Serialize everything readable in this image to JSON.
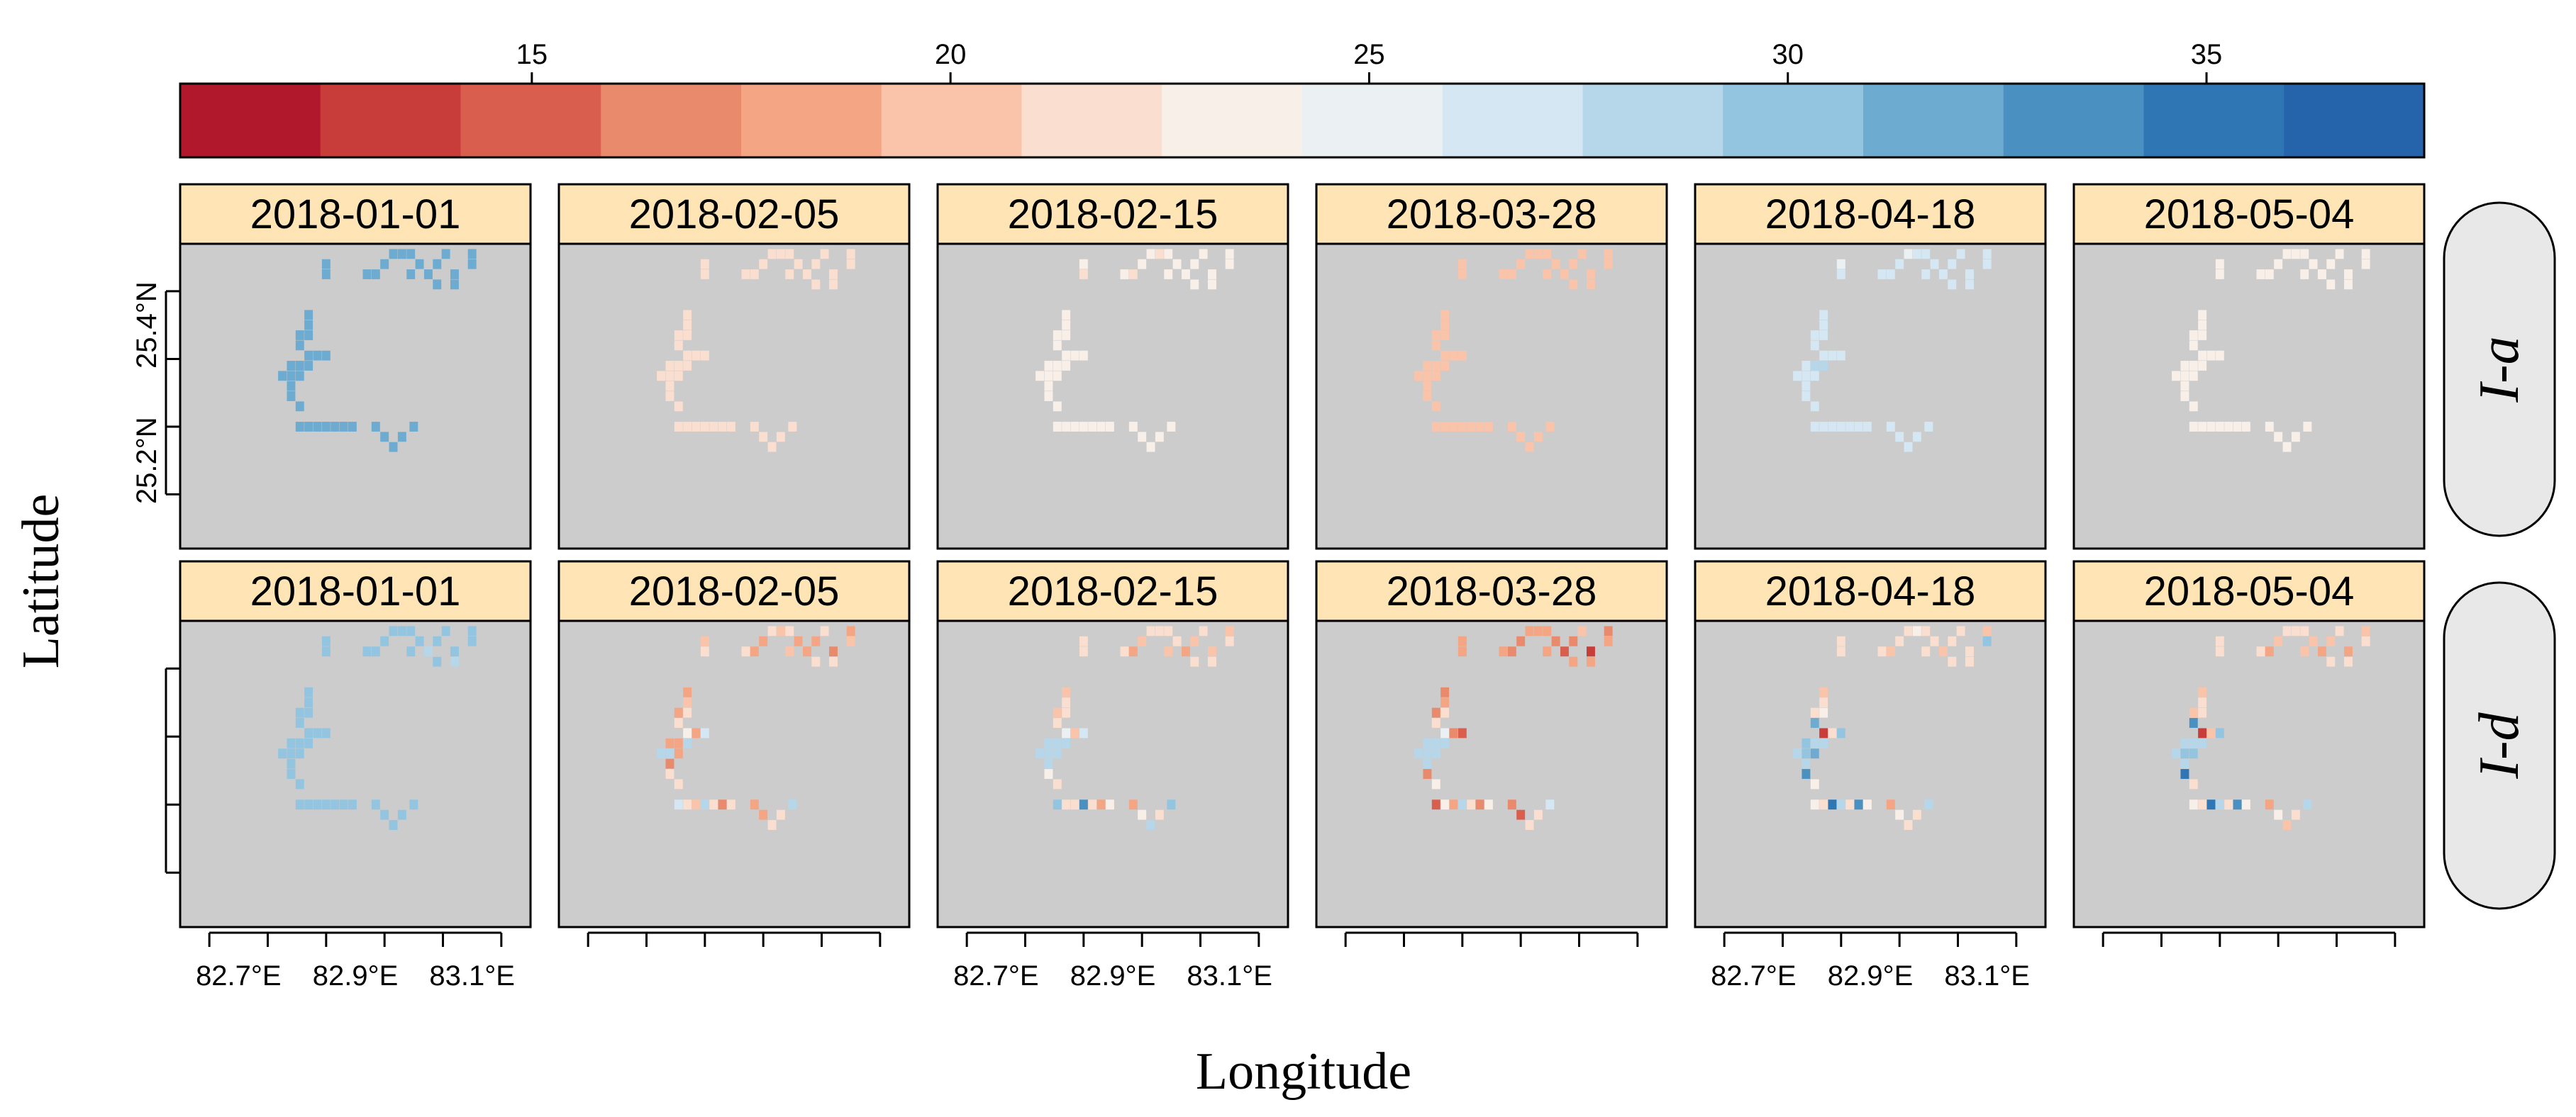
{
  "chart_data": {
    "type": "heatmap",
    "xlabel": "Longitude",
    "ylabel": "Latitude",
    "colorbar": {
      "range": [
        10.8,
        37.6
      ],
      "ticks": [
        15,
        20,
        25,
        30,
        35
      ],
      "bins": 16,
      "palette": [
        "#b2182b",
        "#c83d3a",
        "#da5e4d",
        "#e98a6c",
        "#f4a584",
        "#f9c4aa",
        "#fadecf",
        "#f8efe8",
        "#ebf0f3",
        "#d4e7f2",
        "#b6d7ea",
        "#93c5e0",
        "#6eabd1",
        "#4a91c2",
        "#2f76b5",
        "#2563ab"
      ]
    },
    "x_ticks": [
      82.65,
      82.75,
      82.85,
      82.95,
      83.05,
      83.15
    ],
    "x_tick_labels": [
      "82.7°E",
      "82.9°E",
      "83.1°E"
    ],
    "x_tick_label_values": [
      82.7,
      82.9,
      83.1
    ],
    "y_ticks": [
      25.15,
      25.25,
      25.35,
      25.45
    ],
    "y_tick_labels": [
      "25.2°N",
      "25.4°N"
    ],
    "y_tick_label_values": [
      25.2,
      25.4
    ],
    "xlim": [
      82.6,
      83.2
    ],
    "ylim": [
      25.07,
      25.52
    ],
    "dates": [
      "2018-01-01",
      "2018-02-05",
      "2018-02-15",
      "2018-03-28",
      "2018-04-18",
      "2018-05-04"
    ],
    "rows": [
      {
        "label": "I-a",
        "values": [
          [
            32,
            32,
            32,
            32,
            32,
            32,
            32,
            32,
            32,
            32,
            32,
            32,
            32,
            32,
            32,
            32,
            32,
            32,
            32,
            32,
            32,
            32,
            32,
            32,
            32,
            32,
            32,
            32,
            32,
            32,
            32,
            32,
            32,
            32,
            32,
            32,
            32,
            32,
            32,
            32,
            32,
            32,
            32,
            32,
            32,
            32,
            32
          ],
          [
            21,
            22,
            21,
            22,
            22,
            21,
            22,
            22,
            22,
            22,
            21,
            21,
            22,
            21,
            22,
            21,
            22,
            21,
            21,
            21,
            22,
            21,
            21,
            22,
            22,
            22,
            22,
            22,
            22,
            21,
            22,
            22,
            22,
            22,
            22,
            21,
            22,
            22,
            22,
            22,
            21,
            22,
            22,
            22,
            22,
            22,
            21
          ],
          [
            22.5,
            23,
            23,
            22.5,
            23,
            23,
            22.5,
            23,
            23,
            23,
            23,
            23,
            23,
            23,
            23,
            23,
            23,
            23,
            23,
            23,
            23,
            23,
            23,
            23,
            23,
            23,
            23,
            23,
            23,
            23,
            23,
            23,
            23,
            23,
            23,
            23,
            23,
            23,
            23,
            23,
            23,
            23,
            23,
            23,
            23,
            23,
            23
          ],
          [
            20,
            20.5,
            20,
            20,
            20,
            20.5,
            20,
            20,
            20,
            20,
            20.5,
            20,
            20,
            20,
            20.5,
            20,
            20.5,
            20,
            20,
            20,
            20,
            20,
            20,
            20,
            20,
            20,
            20,
            20,
            20,
            20,
            20,
            20,
            20,
            20,
            20,
            20,
            20,
            20,
            20,
            20,
            20,
            20,
            20,
            20,
            20,
            20,
            20
          ],
          [
            26,
            25.5,
            26,
            26,
            26,
            25.5,
            26,
            26,
            26,
            26,
            26,
            26,
            26,
            26,
            26,
            26,
            26,
            26,
            26,
            26,
            26,
            26,
            26,
            26,
            26,
            26,
            26,
            28,
            28,
            26,
            26,
            26,
            26,
            26,
            26,
            26,
            26,
            26,
            26,
            26,
            26,
            26,
            26,
            26,
            26,
            26,
            26
          ],
          [
            23.5,
            23.5,
            23.5,
            23.5,
            23.5,
            23.5,
            23.5,
            23.5,
            23.5,
            23.5,
            23.5,
            23.5,
            23.5,
            23.5,
            23.5,
            23.5,
            23.5,
            23.5,
            23.5,
            23.5,
            23.5,
            23.5,
            23.5,
            23.5,
            23.5,
            23.5,
            23.5,
            23.5,
            23.5,
            23.5,
            23.5,
            23.5,
            23.5,
            23.5,
            23.5,
            23.5,
            23.5,
            23.5,
            23.5,
            23.5,
            23.5,
            23.5,
            23.5,
            23.5,
            23.5,
            23.5,
            23.5
          ]
        ]
      },
      {
        "label": "I-d",
        "values": [
          [
            30,
            30,
            30,
            30,
            30,
            30,
            30,
            30,
            30,
            30,
            29,
            30,
            30,
            30,
            30,
            29,
            30,
            30,
            30,
            30,
            30,
            30,
            30,
            30,
            30,
            30,
            30,
            30,
            30,
            30,
            30,
            30,
            30,
            30,
            30,
            30,
            30,
            30,
            30,
            30,
            30,
            30,
            30,
            30,
            30,
            30,
            30
          ],
          [
            21,
            20,
            21,
            18,
            19,
            21,
            20,
            21,
            19,
            20,
            18,
            21,
            19,
            22,
            17,
            21,
            20,
            19,
            19,
            20,
            19,
            21,
            22,
            24,
            19,
            26,
            18,
            19,
            29,
            29,
            29,
            18,
            17,
            22,
            21,
            26,
            22,
            20,
            29,
            21,
            17,
            22,
            19,
            18,
            21,
            22,
            29
          ],
          [
            21,
            22,
            21,
            19,
            20,
            21,
            22,
            21,
            21,
            20,
            19,
            21,
            20,
            22,
            20,
            22,
            21,
            20,
            20,
            21,
            20,
            22,
            22,
            25,
            20,
            27,
            29,
            29,
            29,
            29,
            29,
            29,
            29,
            23,
            22,
            30,
            22,
            21,
            34,
            22,
            19,
            24,
            19,
            23,
            29,
            22,
            30
          ],
          [
            19,
            18,
            19,
            16,
            17,
            19,
            18,
            19,
            16,
            18,
            15,
            19,
            17,
            20,
            14,
            19,
            18,
            17,
            17,
            18,
            17,
            22,
            22,
            25,
            17,
            15,
            29,
            28,
            28,
            28,
            28,
            29,
            28,
            17,
            24,
            15,
            23,
            19,
            28,
            22,
            16,
            24,
            17,
            15,
            21,
            22,
            27
          ],
          [
            21,
            22,
            21,
            20,
            21,
            21,
            23,
            21,
            21,
            21,
            20,
            21,
            21,
            22,
            21,
            22,
            30,
            20,
            20,
            21,
            21,
            24,
            31,
            14,
            22,
            30,
            30,
            29,
            28,
            29,
            30,
            31,
            29,
            33,
            24,
            24,
            22,
            35,
            28,
            22,
            34,
            24,
            19,
            24,
            21,
            22,
            29
          ],
          [
            21,
            22,
            21,
            19,
            20,
            21,
            22,
            21,
            20,
            20,
            19,
            21,
            20,
            22,
            18,
            22,
            21,
            20,
            20,
            21,
            20,
            21,
            33,
            13,
            20,
            30,
            29,
            29,
            29,
            29,
            30,
            30,
            29,
            35,
            22,
            24,
            22,
            35,
            28,
            22,
            33,
            23,
            19,
            23,
            20,
            22,
            29
          ]
        ]
      }
    ],
    "cells": [
      [
        82.85,
        25.475
      ],
      [
        82.85,
        25.49
      ],
      [
        82.92,
        25.475
      ],
      [
        82.935,
        25.475
      ],
      [
        82.95,
        25.49
      ],
      [
        82.965,
        25.505
      ],
      [
        82.98,
        25.505
      ],
      [
        82.995,
        25.505
      ],
      [
        83.01,
        25.49
      ],
      [
        82.995,
        25.475
      ],
      [
        83.025,
        25.475
      ],
      [
        83.04,
        25.46
      ],
      [
        83.04,
        25.49
      ],
      [
        83.055,
        25.505
      ],
      [
        83.07,
        25.475
      ],
      [
        83.07,
        25.46
      ],
      [
        83.1,
        25.49
      ],
      [
        83.1,
        25.505
      ],
      [
        82.82,
        25.415
      ],
      [
        82.82,
        25.4
      ],
      [
        82.805,
        25.385
      ],
      [
        82.82,
        25.385
      ],
      [
        82.805,
        25.37
      ],
      [
        82.82,
        25.355
      ],
      [
        82.835,
        25.355
      ],
      [
        82.85,
        25.355
      ],
      [
        82.79,
        25.34
      ],
      [
        82.805,
        25.34
      ],
      [
        82.82,
        25.34
      ],
      [
        82.775,
        25.325
      ],
      [
        82.79,
        25.325
      ],
      [
        82.805,
        25.325
      ],
      [
        82.79,
        25.31
      ],
      [
        82.79,
        25.295
      ],
      [
        82.805,
        25.28
      ],
      [
        82.805,
        25.25
      ],
      [
        82.82,
        25.25
      ],
      [
        82.835,
        25.25
      ],
      [
        82.85,
        25.25
      ],
      [
        82.865,
        25.25
      ],
      [
        82.88,
        25.25
      ],
      [
        82.895,
        25.25
      ],
      [
        82.935,
        25.25
      ],
      [
        82.95,
        25.235
      ],
      [
        82.965,
        25.22
      ],
      [
        82.98,
        25.235
      ],
      [
        83.0,
        25.25
      ]
    ],
    "cell_size": [
      0.0145,
      0.0145
    ]
  }
}
